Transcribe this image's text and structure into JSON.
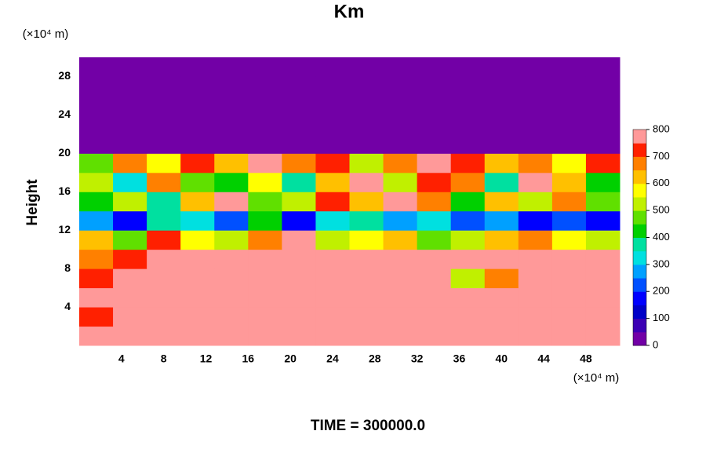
{
  "chart_data": {
    "type": "heatmap",
    "title": "Km",
    "subtitle": "TIME = 300000.0",
    "y_axis_label": "Height",
    "y_unit_label": "(×10⁴ m)",
    "x_unit_label": "(×10⁴ m)",
    "xbins": [
      0,
      3.2,
      6.4,
      9.6,
      12.8,
      16,
      19.2,
      22.4,
      25.6,
      28.8,
      32,
      35.2,
      38.4,
      41.6,
      44.8,
      48,
      51.2
    ],
    "ybins": [
      0,
      2,
      4,
      6,
      8,
      10,
      12,
      14,
      16,
      18,
      20,
      22,
      24,
      26,
      28,
      30
    ],
    "z": [
      [
        800,
        800,
        800,
        800,
        800,
        800,
        800,
        800,
        800,
        800,
        800,
        800,
        800,
        800,
        800,
        800
      ],
      [
        700,
        800,
        800,
        800,
        800,
        800,
        800,
        800,
        800,
        800,
        800,
        800,
        800,
        800,
        800,
        800
      ],
      [
        750,
        800,
        800,
        750,
        750,
        800,
        800,
        800,
        750,
        750,
        800,
        800,
        750,
        750,
        800,
        800
      ],
      [
        700,
        800,
        800,
        800,
        800,
        800,
        750,
        800,
        800,
        750,
        800,
        500,
        650,
        800,
        800,
        800
      ],
      [
        650,
        700,
        800,
        800,
        800,
        800,
        800,
        800,
        800,
        800,
        800,
        800,
        800,
        800,
        800,
        800
      ],
      [
        600,
        450,
        700,
        550,
        500,
        650,
        750,
        500,
        550,
        600,
        450,
        500,
        600,
        650,
        550,
        500
      ],
      [
        250,
        150,
        350,
        300,
        200,
        400,
        150,
        300,
        350,
        250,
        300,
        200,
        250,
        150,
        200,
        150
      ],
      [
        400,
        500,
        350,
        600,
        750,
        450,
        500,
        700,
        600,
        750,
        650,
        400,
        600,
        500,
        650,
        450
      ],
      [
        500,
        300,
        650,
        450,
        400,
        550,
        350,
        600,
        750,
        500,
        700,
        650,
        350,
        750,
        600,
        400
      ],
      [
        450,
        650,
        550,
        700,
        600,
        750,
        650,
        700,
        500,
        650,
        750,
        700,
        600,
        650,
        550,
        700
      ],
      [
        0,
        0,
        0,
        0,
        0,
        0,
        0,
        0,
        0,
        0,
        0,
        0,
        0,
        0,
        0,
        0
      ],
      [
        0,
        0,
        0,
        0,
        0,
        0,
        0,
        0,
        0,
        0,
        0,
        0,
        0,
        0,
        0,
        0
      ],
      [
        0,
        0,
        0,
        0,
        0,
        0,
        0,
        0,
        0,
        0,
        0,
        0,
        0,
        0,
        0,
        0
      ],
      [
        0,
        0,
        0,
        0,
        0,
        0,
        0,
        0,
        0,
        0,
        0,
        0,
        0,
        0,
        0,
        0
      ],
      [
        0,
        0,
        0,
        0,
        0,
        0,
        0,
        0,
        0,
        0,
        0,
        0,
        0,
        0,
        0,
        0
      ]
    ],
    "levels": [
      0,
      50,
      100,
      150,
      200,
      250,
      300,
      350,
      400,
      450,
      500,
      550,
      600,
      650,
      700,
      750,
      800
    ],
    "colors": [
      "#7200a6",
      "#3c00b4",
      "#0000c8",
      "#0000ff",
      "#0050ff",
      "#00a0ff",
      "#00e0e0",
      "#00e0a0",
      "#00d000",
      "#60e000",
      "#c0f000",
      "#ffff00",
      "#ffc000",
      "#ff8000",
      "#ff2000",
      "#ff9999"
    ],
    "xlim": [
      0,
      51.2
    ],
    "ylim": [
      0,
      30
    ],
    "xticks": [
      4,
      8,
      12,
      16,
      20,
      24,
      28,
      32,
      36,
      40,
      44,
      48
    ],
    "yticks": [
      4,
      8,
      12,
      16,
      20,
      24,
      28
    ],
    "clim": [
      0,
      800
    ],
    "cticks": [
      0,
      100,
      200,
      300,
      400,
      500,
      600,
      700,
      800
    ]
  }
}
